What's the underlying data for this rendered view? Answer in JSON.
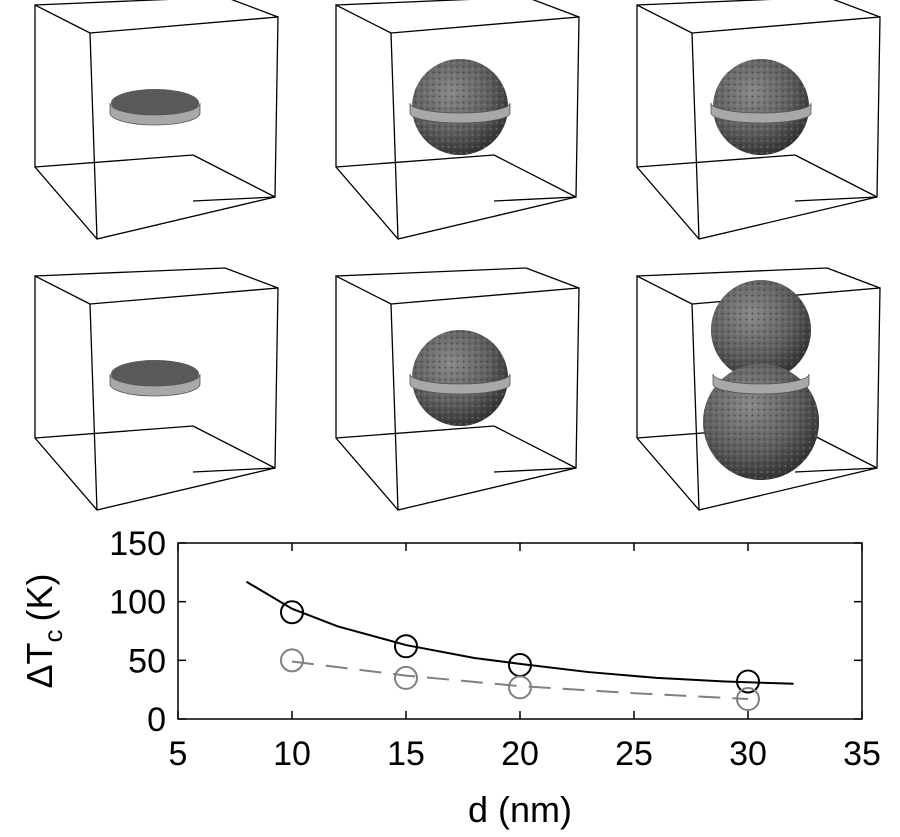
{
  "panels": [
    {
      "row": 1,
      "col": 1,
      "shape": "disk"
    },
    {
      "row": 1,
      "col": 2,
      "shape": "sphere"
    },
    {
      "row": 1,
      "col": 3,
      "shape": "sphere"
    },
    {
      "row": 2,
      "col": 1,
      "shape": "disk"
    },
    {
      "row": 2,
      "col": 2,
      "shape": "sphere"
    },
    {
      "row": 2,
      "col": 3,
      "shape": "double-sphere"
    }
  ],
  "colors": {
    "series_black": "#000000",
    "series_gray": "#808080",
    "particle_fill": "#5a5a5a",
    "ring_fill": "#a8a8a8"
  },
  "chart_data": {
    "type": "line",
    "xlabel": "d (nm)",
    "ylabel_main": "ΔT",
    "ylabel_sub": "c",
    "ylabel_unit": "(K)",
    "xlim": [
      5,
      35
    ],
    "ylim": [
      0,
      150
    ],
    "xticks": [
      "5",
      "10",
      "15",
      "20",
      "25",
      "30",
      "35"
    ],
    "yticks": [
      "0",
      "50",
      "100",
      "150"
    ],
    "grid": false,
    "series": [
      {
        "style": "solid-line",
        "color": "#000000",
        "x": [
          8,
          10,
          12,
          15,
          18,
          20,
          23,
          26,
          29,
          32
        ],
        "y": [
          117,
          94,
          79,
          63,
          52,
          47,
          40,
          35,
          32,
          30
        ]
      },
      {
        "style": "circles",
        "color": "#000000",
        "x": [
          10,
          15,
          20,
          30
        ],
        "y": [
          91,
          62,
          46,
          32
        ]
      },
      {
        "style": "dashed-line",
        "color": "#808080",
        "x": [
          10,
          15,
          20,
          25,
          30
        ],
        "y": [
          49,
          37,
          28,
          22,
          17
        ]
      },
      {
        "style": "circles",
        "color": "#808080",
        "x": [
          10,
          15,
          20,
          30
        ],
        "y": [
          50,
          35,
          27,
          17
        ]
      }
    ]
  }
}
